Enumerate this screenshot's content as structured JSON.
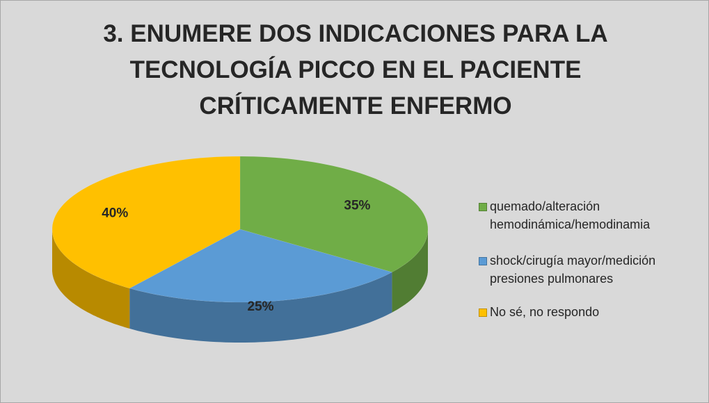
{
  "chart_data": {
    "type": "pie",
    "title": "3. ENUMERE DOS INDICACIONES PARA LA TECNOLOGÍA PICCO EN EL PACIENTE CRÍTICAMENTE ENFERMO",
    "categories": [
      "quemado/alteración hemodinámica/hemodinamia",
      "shock/cirugía mayor/medición presiones pulmonares",
      "No sé, no respondo"
    ],
    "values": [
      35,
      25,
      40
    ],
    "value_labels": [
      "35%",
      "25%",
      "40%"
    ],
    "colors": [
      "#70ad47",
      "#5b9bd5",
      "#ffc000"
    ],
    "legend": "right"
  }
}
